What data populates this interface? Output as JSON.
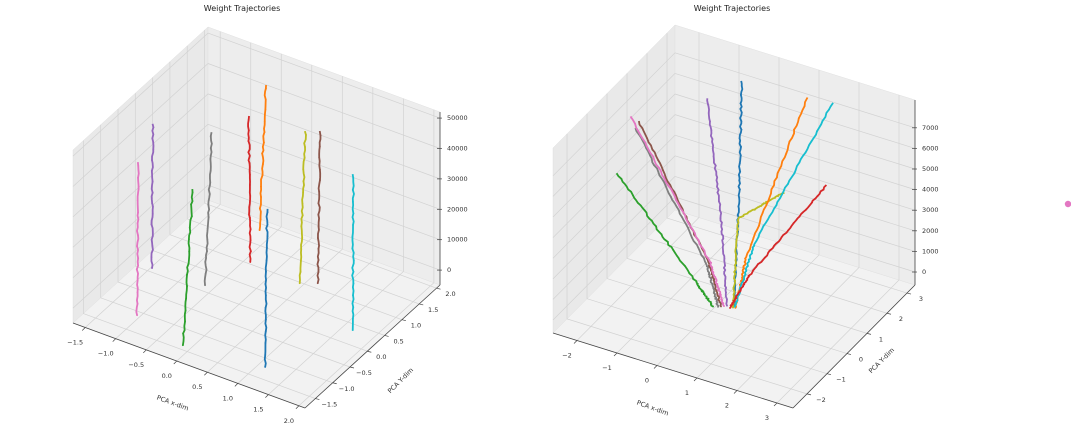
{
  "chart_data": [
    {
      "type": "line3d",
      "title": "Weight Trajectories",
      "xlabel": "PCA x-dim",
      "ylabel": "PCA Y-dim",
      "zlabel": "",
      "xlim": [
        -1.7,
        2.1
      ],
      "ylim": [
        -1.8,
        2.1
      ],
      "zlim": [
        -4900,
        52000
      ],
      "xticks": [
        "−1.5",
        "−1.0",
        "−0.5",
        "0.0",
        "0.5",
        "1.0",
        "1.5",
        "2.0"
      ],
      "xtick_values": [
        -1.5,
        -1.0,
        -0.5,
        0.0,
        0.5,
        1.0,
        1.5,
        2.0
      ],
      "yticks": [
        "−1.5",
        "−1.0",
        "−0.5",
        "0.0",
        "0.5",
        "1.0",
        "1.5",
        "2.0"
      ],
      "ytick_values": [
        -1.5,
        -1.0,
        -0.5,
        0.0,
        0.5,
        1.0,
        1.5,
        2.0
      ],
      "zticks": [
        "0",
        "10000",
        "20000",
        "30000",
        "40000",
        "50000"
      ],
      "ztick_values": [
        0,
        10000,
        20000,
        30000,
        40000,
        50000
      ],
      "grid": true,
      "series": [
        {
          "color": "#e377c2",
          "points": [
            [
              -0.86,
              -1.43,
              0
            ],
            [
              -0.86,
              -1.4,
              50000
            ]
          ]
        },
        {
          "color": "#9467bd",
          "points": [
            [
              -1.29,
              -0.24,
              0
            ],
            [
              -1.3,
              -0.2,
              47000
            ]
          ]
        },
        {
          "color": "#2ca02c",
          "points": [
            [
              0.06,
              -1.73,
              0
            ],
            [
              0.16,
              -1.62,
              51000
            ]
          ]
        },
        {
          "color": "#7f7f7f",
          "points": [
            [
              -0.45,
              -0.19,
              0
            ],
            [
              -0.38,
              -0.12,
              50000
            ]
          ]
        },
        {
          "color": "#d62728",
          "points": [
            [
              -0.22,
              0.71,
              0
            ],
            [
              -0.24,
              0.7,
              48000
            ]
          ]
        },
        {
          "color": "#ff7f0e",
          "points": [
            [
              -0.52,
              1.51,
              0
            ],
            [
              -0.44,
              1.55,
              48000
            ]
          ]
        },
        {
          "color": "#1f77b4",
          "points": [
            [
              1.3,
              -1.54,
              0
            ],
            [
              1.28,
              -1.45,
              51000
            ]
          ]
        },
        {
          "color": "#bcbd22",
          "points": [
            [
              0.63,
              0.64,
              0
            ],
            [
              0.7,
              0.68,
              50000
            ]
          ]
        },
        {
          "color": "#8c564b",
          "points": [
            [
              0.84,
              0.79,
              0
            ],
            [
              0.87,
              0.81,
              50000
            ]
          ]
        },
        {
          "color": "#17becf",
          "points": [
            [
              1.85,
              0.02,
              0
            ],
            [
              1.85,
              0.04,
              51000
            ]
          ]
        }
      ]
    },
    {
      "type": "line3d",
      "title": "Weight Trajectories",
      "xlabel": "PCA x-dim",
      "ylabel": "PCA Y-dim",
      "zlabel": "",
      "xlim": [
        -2.6,
        3.4
      ],
      "ylim": [
        -2.7,
        3.4
      ],
      "zlim": [
        -630,
        8350
      ],
      "xticks": [
        "−2",
        "−1",
        "0",
        "1",
        "2",
        "3"
      ],
      "xtick_values": [
        -2,
        -1,
        0,
        1,
        2,
        3
      ],
      "yticks": [
        "−2",
        "−1",
        "0",
        "1",
        "2",
        "3"
      ],
      "ytick_values": [
        -2,
        -1,
        0,
        1,
        2,
        3
      ],
      "zticks": [
        "0",
        "1000",
        "2000",
        "3000",
        "4000",
        "5000",
        "6000",
        "7000"
      ],
      "ztick_values": [
        0,
        1000,
        2000,
        3000,
        4000,
        5000,
        6000,
        7000
      ],
      "grid": true,
      "series": [
        {
          "color": "#2ca02c",
          "points": [
            [
              0.2,
              -0.3,
              0
            ],
            [
              -0.1,
              -0.65,
              1500
            ],
            [
              -1.34,
              -2.02,
              7200
            ]
          ]
        },
        {
          "color": "#7f7f7f",
          "points": [
            [
              0.3,
              -0.25,
              0
            ],
            [
              0.0,
              -0.2,
              1800
            ],
            [
              -1.87,
              -0.06,
              7200
            ]
          ]
        },
        {
          "color": "#8c564b",
          "points": [
            [
              0.35,
              -0.2,
              0
            ],
            [
              0.0,
              -0.1,
              1800
            ],
            [
              -1.94,
              0.24,
              7200
            ]
          ]
        },
        {
          "color": "#e377c2",
          "points": [
            [
              0.4,
              -0.15,
              0
            ],
            [
              0.0,
              -0.05,
              1800
            ],
            [
              -2.15,
              0.3,
              7200
            ]
          ]
        },
        {
          "color": "#9467bd",
          "points": [
            [
              0.45,
              -0.1,
              0
            ],
            [
              0.0,
              0.5,
              3500
            ],
            [
              -1.06,
              1.92,
              7200
            ]
          ]
        },
        {
          "color": "#1f77b4",
          "points": [
            [
              0.6,
              -0.05,
              0
            ],
            [
              -0.05,
              1.5,
              3500
            ],
            [
              -0.72,
              2.98,
              7200
            ]
          ]
        },
        {
          "color": "#bcbd22",
          "points": [
            [
              0.6,
              -0.1,
              0
            ],
            [
              0.76,
              -0.17,
              4500
            ],
            [
              2.2,
              -0.76,
              7200
            ]
          ]
        },
        {
          "color": "#ff7f0e",
          "points": [
            [
              0.65,
              -0.08,
              0
            ],
            [
              0.68,
              0.4,
              2000
            ],
            [
              0.85,
              3.1,
              7200
            ]
          ]
        },
        {
          "color": "#17becf",
          "points": [
            [
              0.62,
              -0.05,
              0
            ],
            [
              0.78,
              0.6,
              2500
            ],
            [
              1.44,
              3.22,
              7200
            ]
          ]
        },
        {
          "color": "#d62728",
          "points": [
            [
              0.55,
              -0.15,
              0
            ],
            [
              1.0,
              -0.1,
              1800
            ],
            [
              2.87,
              0.05,
              7200
            ]
          ]
        }
      ]
    }
  ],
  "legend_marker_color": "#e377c2"
}
